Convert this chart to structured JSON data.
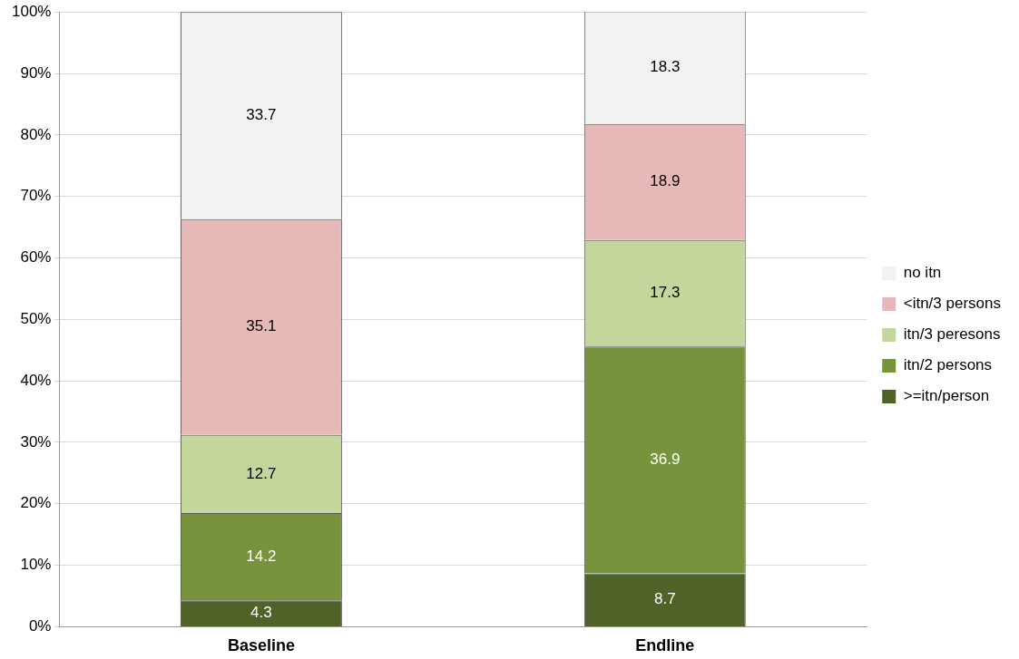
{
  "chart_data": {
    "type": "bar",
    "stacked": true,
    "categories": [
      "Baseline",
      "Endline"
    ],
    "series": [
      {
        "name": ">=itn/person",
        "color": "#4f6228",
        "values": [
          4.3,
          8.7
        ]
      },
      {
        "name": "itn/2 persons",
        "color": "#77933c",
        "values": [
          14.2,
          36.9
        ]
      },
      {
        "name": "itn/3 peresons",
        "color": "#c3d69b",
        "values": [
          12.7,
          17.3
        ]
      },
      {
        "name": "<itn/3 persons",
        "color": "#e6b9b8",
        "values": [
          35.1,
          18.9
        ]
      },
      {
        "name": "no itn",
        "color": "#f2f2f2",
        "values": [
          33.7,
          18.3
        ]
      }
    ],
    "ylim": [
      0,
      100
    ],
    "yticks": [
      {
        "value": 0,
        "label": "0%"
      },
      {
        "value": 10,
        "label": "10%"
      },
      {
        "value": 20,
        "label": "20%"
      },
      {
        "value": 30,
        "label": "30%"
      },
      {
        "value": 40,
        "label": "40%"
      },
      {
        "value": 50,
        "label": "50%"
      },
      {
        "value": 60,
        "label": "60%"
      },
      {
        "value": 70,
        "label": "70%"
      },
      {
        "value": 80,
        "label": "80%"
      },
      {
        "value": 90,
        "label": "90%"
      },
      {
        "value": 100,
        "label": "100%"
      }
    ],
    "grid": "y",
    "legend": "right",
    "data_labels": true
  }
}
